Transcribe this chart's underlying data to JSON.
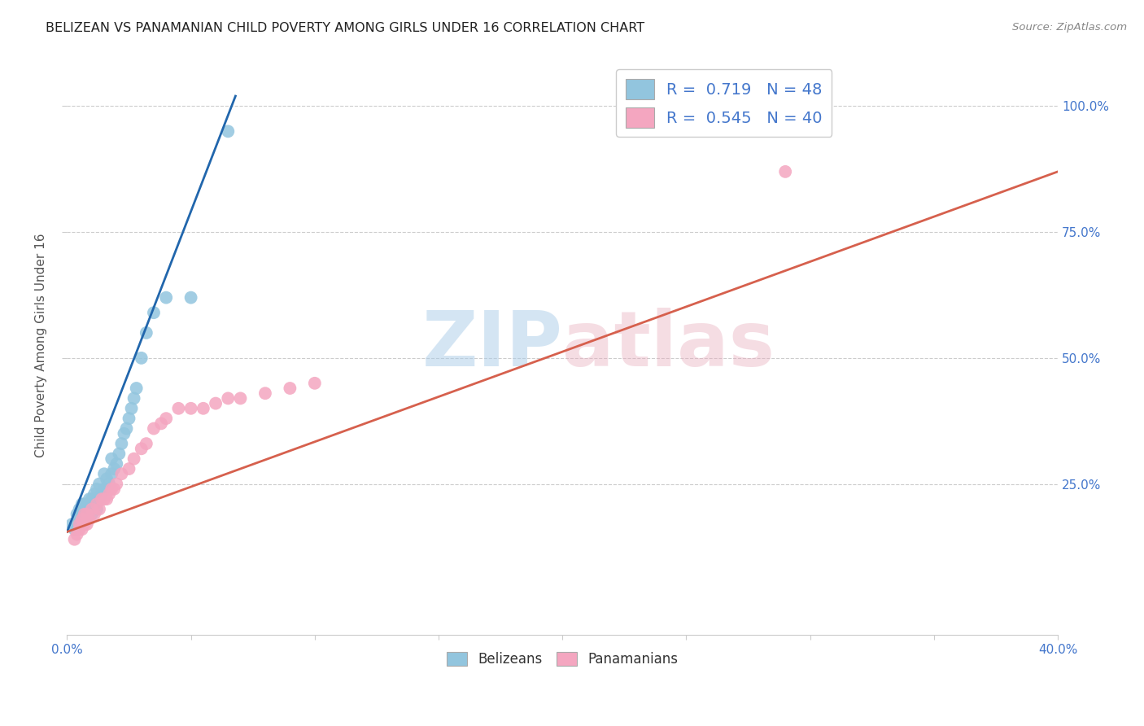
{
  "title": "BELIZEAN VS PANAMANIAN CHILD POVERTY AMONG GIRLS UNDER 16 CORRELATION CHART",
  "source": "Source: ZipAtlas.com",
  "ylabel": "Child Poverty Among Girls Under 16",
  "watermark": "ZIPatlas",
  "xlim": [
    0.0,
    0.4
  ],
  "ylim": [
    -0.05,
    1.1
  ],
  "plot_ylim": [
    -0.05,
    1.1
  ],
  "xtick_vals": [
    0.0,
    0.05,
    0.1,
    0.15,
    0.2,
    0.25,
    0.3,
    0.35,
    0.4
  ],
  "xtick_labels_show": {
    "0.0": "0.0%",
    "0.40": "40.0%"
  },
  "ytick_vals": [
    0.25,
    0.5,
    0.75,
    1.0
  ],
  "ytick_labels": [
    "25.0%",
    "50.0%",
    "75.0%",
    "100.0%"
  ],
  "blue_R": 0.719,
  "blue_N": 48,
  "pink_R": 0.545,
  "pink_N": 40,
  "blue_color": "#92c5de",
  "pink_color": "#f4a6c0",
  "blue_line_color": "#2166ac",
  "pink_line_color": "#d6604d",
  "background_color": "#ffffff",
  "grid_color": "#cccccc",
  "title_color": "#222222",
  "blue_scatter_x": [
    0.002,
    0.003,
    0.004,
    0.005,
    0.005,
    0.006,
    0.006,
    0.007,
    0.007,
    0.008,
    0.008,
    0.008,
    0.009,
    0.009,
    0.01,
    0.01,
    0.01,
    0.01,
    0.011,
    0.011,
    0.012,
    0.012,
    0.012,
    0.013,
    0.013,
    0.014,
    0.015,
    0.015,
    0.016,
    0.017,
    0.018,
    0.018,
    0.019,
    0.02,
    0.021,
    0.022,
    0.023,
    0.024,
    0.025,
    0.026,
    0.027,
    0.028,
    0.03,
    0.032,
    0.035,
    0.04,
    0.05,
    0.065
  ],
  "blue_scatter_y": [
    0.17,
    0.16,
    0.19,
    0.18,
    0.2,
    0.19,
    0.21,
    0.2,
    0.21,
    0.19,
    0.2,
    0.21,
    0.2,
    0.22,
    0.19,
    0.2,
    0.21,
    0.22,
    0.21,
    0.23,
    0.2,
    0.22,
    0.24,
    0.22,
    0.25,
    0.23,
    0.24,
    0.27,
    0.26,
    0.25,
    0.27,
    0.3,
    0.28,
    0.29,
    0.31,
    0.33,
    0.35,
    0.36,
    0.38,
    0.4,
    0.42,
    0.44,
    0.5,
    0.55,
    0.59,
    0.62,
    0.62,
    0.95
  ],
  "pink_scatter_x": [
    0.003,
    0.004,
    0.005,
    0.005,
    0.006,
    0.006,
    0.007,
    0.007,
    0.008,
    0.008,
    0.009,
    0.01,
    0.011,
    0.012,
    0.013,
    0.014,
    0.015,
    0.016,
    0.017,
    0.018,
    0.019,
    0.02,
    0.022,
    0.025,
    0.027,
    0.03,
    0.032,
    0.035,
    0.038,
    0.04,
    0.045,
    0.05,
    0.055,
    0.06,
    0.065,
    0.07,
    0.08,
    0.09,
    0.1,
    0.29
  ],
  "pink_scatter_y": [
    0.14,
    0.15,
    0.16,
    0.17,
    0.16,
    0.18,
    0.17,
    0.19,
    0.17,
    0.19,
    0.18,
    0.2,
    0.19,
    0.21,
    0.2,
    0.22,
    0.22,
    0.22,
    0.23,
    0.24,
    0.24,
    0.25,
    0.27,
    0.28,
    0.3,
    0.32,
    0.33,
    0.36,
    0.37,
    0.38,
    0.4,
    0.4,
    0.4,
    0.41,
    0.42,
    0.42,
    0.43,
    0.44,
    0.45,
    0.87
  ],
  "blue_trendline_x": [
    0.0,
    0.068
  ],
  "blue_trendline_y": [
    0.155,
    1.02
  ],
  "pink_trendline_x": [
    0.0,
    0.4
  ],
  "pink_trendline_y": [
    0.155,
    0.87
  ],
  "legend_label_blue": "R =  0.719   N = 48",
  "legend_label_pink": "R =  0.545   N = 40",
  "legend_bottom_blue": "Belizeans",
  "legend_bottom_pink": "Panamanians"
}
